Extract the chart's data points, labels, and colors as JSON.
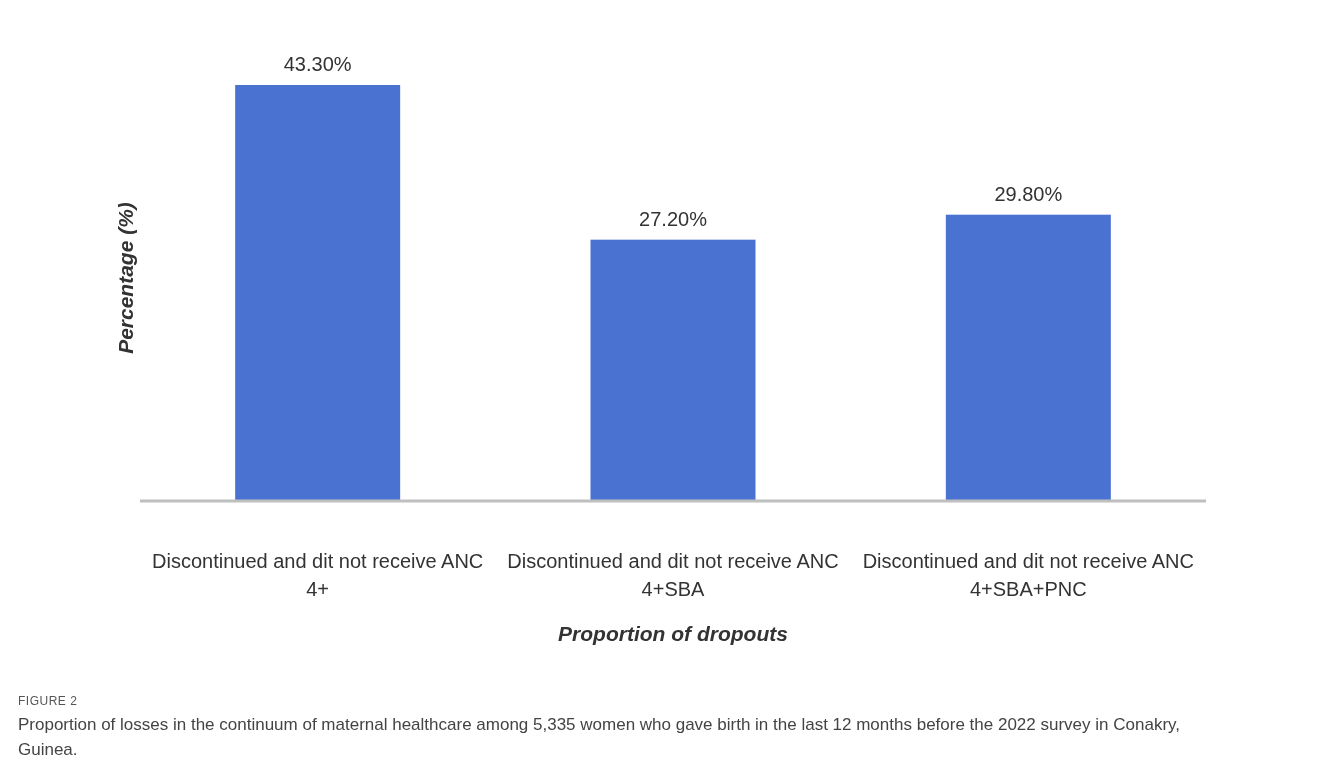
{
  "chart_data": {
    "type": "bar",
    "xlabel": "Proportion of dropouts",
    "ylabel": "Percentage (%)",
    "categories": [
      "Discontinued and dit not receive ANC 4+",
      "Discontinued and dit not receive ANC 4+SBA",
      "Discontinued and dit not receive ANC 4+SBA+PNC"
    ],
    "values": [
      43.3,
      27.2,
      29.8
    ],
    "value_labels": [
      "43.30%",
      "27.20%",
      "29.80%"
    ],
    "color": "#4a72d0",
    "annotations": [
      "FIGURE 2",
      "Proportion of losses in the continuum of maternal healthcare among 5,335 women who gave birth in the last 12 months before the 2022 survey in Conakry, Guinea."
    ]
  }
}
